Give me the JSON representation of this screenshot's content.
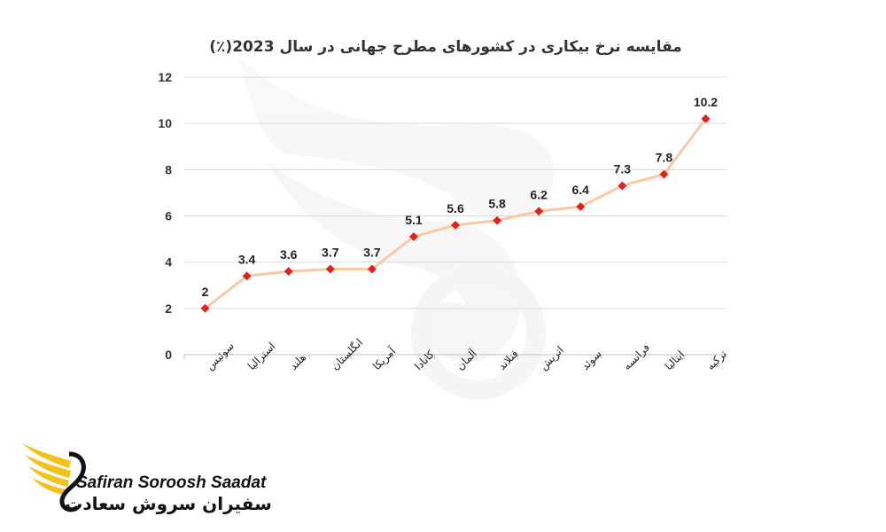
{
  "chart_data": {
    "type": "line",
    "title": "مقایسه نرخ بیکاری در کشورهای مطرح جهانی در سال 2023(٪)",
    "categories": [
      "سوئیس",
      "استرالیا",
      "هلند",
      "انگلستان",
      "آمریکا",
      "کانادا",
      "آلمان",
      "فنلاند",
      "اتریش",
      "سوئد",
      "فرانسه",
      "ایتالیا",
      "ترکیه"
    ],
    "values": [
      2,
      3.4,
      3.6,
      3.7,
      3.7,
      5.1,
      5.6,
      5.8,
      6.2,
      6.4,
      7.3,
      7.8,
      10.2
    ],
    "ylim": [
      0,
      12
    ],
    "yticks": [
      0,
      2,
      4,
      6,
      8,
      10,
      12
    ],
    "grid": true,
    "line_color": "#f8c9a4",
    "marker_color": "#e32019"
  },
  "logo": {
    "name_en": "Safiran Soroosh Saadat",
    "name_fa": "سفیران سروش سعادت",
    "accent": "#f2c21b"
  }
}
